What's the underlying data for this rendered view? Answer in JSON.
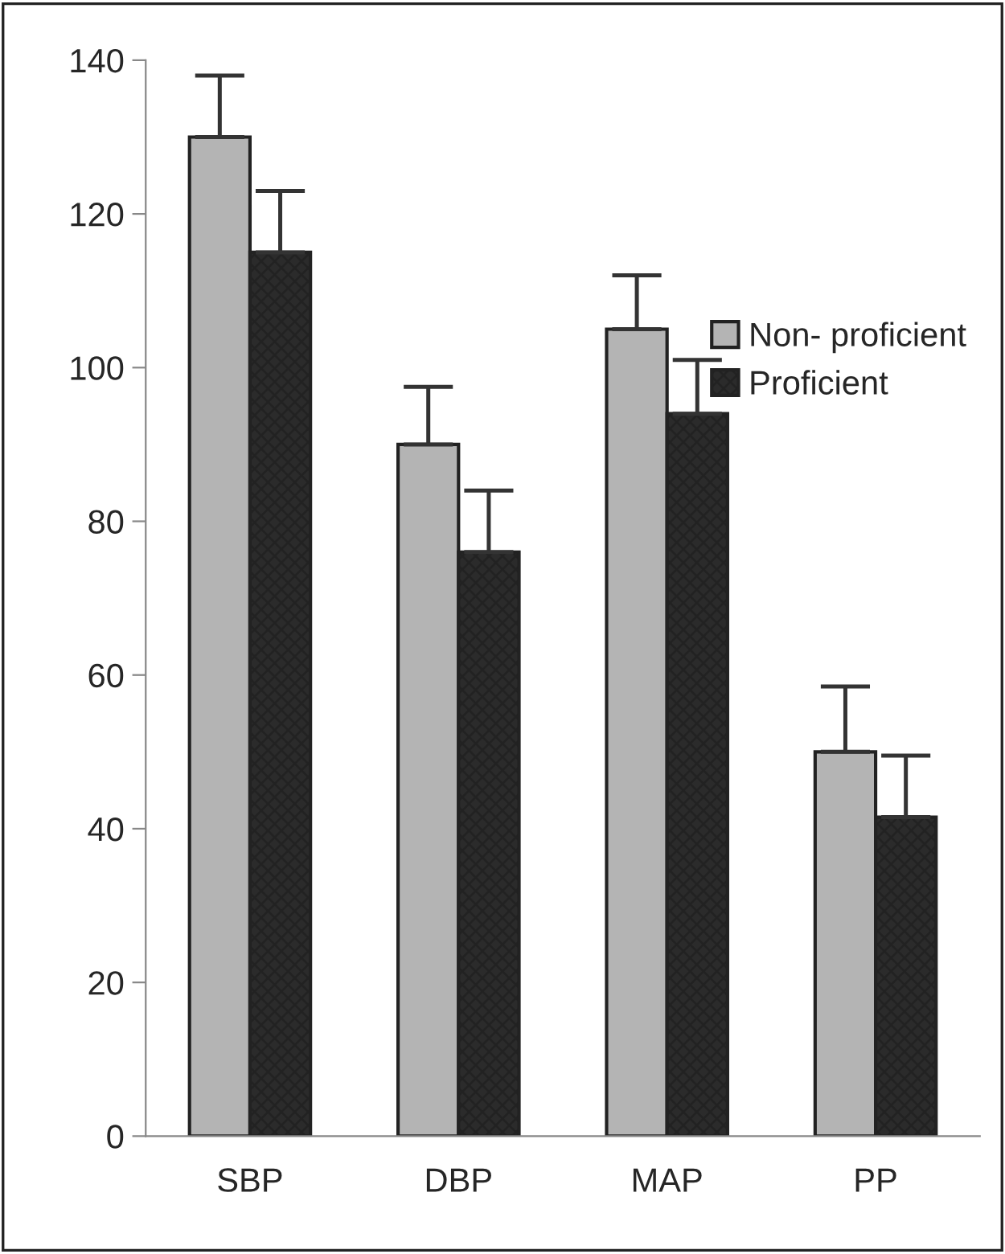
{
  "chart_data": {
    "type": "bar",
    "categories": [
      "SBP",
      "DBP",
      "MAP",
      "PP"
    ],
    "series": [
      {
        "name": "Non- proficient",
        "color": "#b4b4b4",
        "values": [
          130,
          90,
          105,
          50
        ],
        "errors": [
          [
            130,
            138
          ],
          [
            90,
            97.5
          ],
          [
            105,
            112
          ],
          [
            50,
            58.5
          ]
        ]
      },
      {
        "name": "Proficient",
        "color": "#2b2b2b",
        "values": [
          115,
          76,
          94,
          41.5
        ],
        "errors": [
          [
            115,
            123
          ],
          [
            76,
            84
          ],
          [
            94,
            101
          ],
          [
            41.5,
            49.5
          ]
        ]
      }
    ],
    "ylim": [
      0,
      140
    ],
    "yticks": [
      0,
      20,
      40,
      60,
      80,
      100,
      120,
      140
    ],
    "grid": false,
    "legend": "right"
  }
}
